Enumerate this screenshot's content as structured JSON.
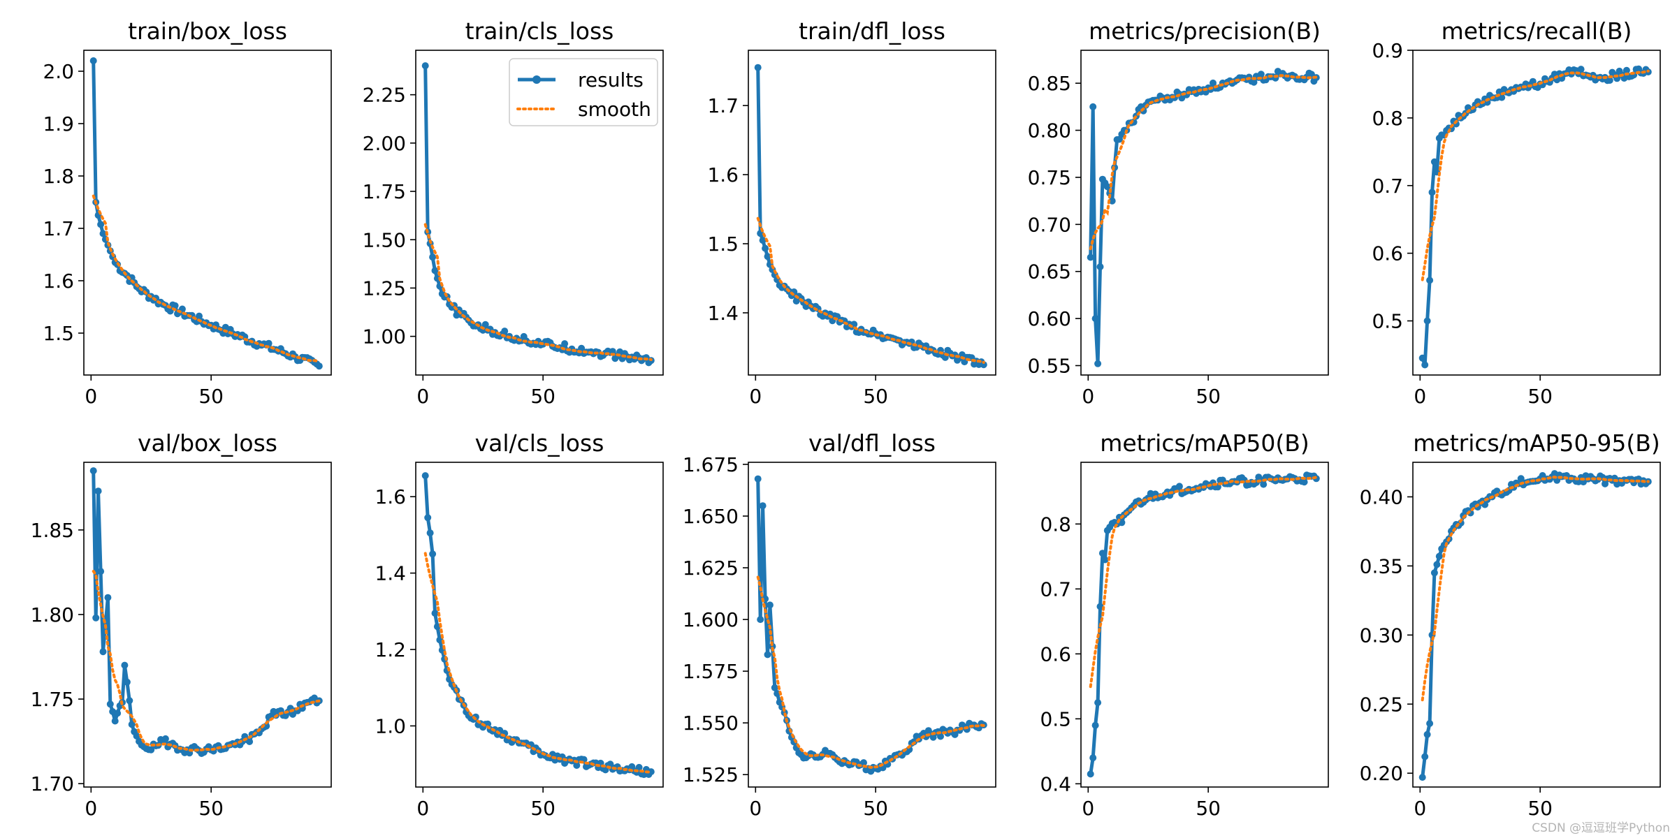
{
  "watermark": "CSDN @逗逗班学Python",
  "colors": {
    "results": "#1f77b4",
    "smooth": "#ff7f0e"
  },
  "legend": {
    "results": "results",
    "smooth": "smooth"
  },
  "chart_data": [
    {
      "type": "line",
      "title": "train/box_loss",
      "xlim": [
        -3,
        100
      ],
      "ylim": [
        1.42,
        2.04
      ],
      "xticks": [
        0,
        50
      ],
      "yticks": [
        1.5,
        1.6,
        1.7,
        1.8,
        1.9,
        2.0
      ],
      "ytick_labels": [
        "1.5",
        "1.6",
        "1.7",
        "1.8",
        "1.9",
        "2.0"
      ],
      "kp": [
        [
          1,
          2.02
        ],
        [
          2,
          1.75
        ],
        [
          3,
          1.725
        ],
        [
          5,
          1.69
        ],
        [
          10,
          1.635
        ],
        [
          20,
          1.585
        ],
        [
          30,
          1.555
        ],
        [
          50,
          1.515
        ],
        [
          70,
          1.48
        ],
        [
          85,
          1.455
        ],
        [
          95,
          1.437
        ]
      ],
      "legend": false
    },
    {
      "type": "line",
      "title": "train/cls_loss",
      "xlim": [
        -3,
        100
      ],
      "ylim": [
        0.8,
        2.48
      ],
      "xticks": [
        0,
        50
      ],
      "yticks": [
        1.0,
        1.25,
        1.5,
        1.75,
        2.0,
        2.25
      ],
      "ytick_labels": [
        "1.00",
        "1.25",
        "1.50",
        "1.75",
        "2.00",
        "2.25"
      ],
      "kp": [
        [
          1,
          2.4
        ],
        [
          2,
          1.54
        ],
        [
          3,
          1.48
        ],
        [
          5,
          1.34
        ],
        [
          8,
          1.22
        ],
        [
          12,
          1.15
        ],
        [
          20,
          1.07
        ],
        [
          30,
          1.02
        ],
        [
          50,
          0.96
        ],
        [
          70,
          0.92
        ],
        [
          85,
          0.895
        ],
        [
          95,
          0.875
        ]
      ],
      "legend": true
    },
    {
      "type": "line",
      "title": "train/dfl_loss",
      "xlim": [
        -3,
        100
      ],
      "ylim": [
        1.31,
        1.78
      ],
      "xticks": [
        0,
        50
      ],
      "yticks": [
        1.4,
        1.5,
        1.6,
        1.7
      ],
      "ytick_labels": [
        "1.4",
        "1.5",
        "1.6",
        "1.7"
      ],
      "kp": [
        [
          1,
          1.755
        ],
        [
          2,
          1.515
        ],
        [
          3,
          1.505
        ],
        [
          6,
          1.47
        ],
        [
          10,
          1.44
        ],
        [
          20,
          1.415
        ],
        [
          30,
          1.395
        ],
        [
          40,
          1.38
        ],
        [
          50,
          1.37
        ],
        [
          70,
          1.35
        ],
        [
          85,
          1.335
        ],
        [
          95,
          1.325
        ]
      ],
      "legend": false
    },
    {
      "type": "line",
      "title": "metrics/precision(B)",
      "xlim": [
        -3,
        100
      ],
      "ylim": [
        0.54,
        0.885
      ],
      "xticks": [
        0,
        50
      ],
      "yticks": [
        0.55,
        0.6,
        0.65,
        0.7,
        0.75,
        0.8,
        0.85
      ],
      "ytick_labels": [
        "0.55",
        "0.60",
        "0.65",
        "0.70",
        "0.75",
        "0.80",
        "0.85"
      ],
      "kp": [
        [
          1,
          0.665
        ],
        [
          2,
          0.825
        ],
        [
          3,
          0.6
        ],
        [
          4,
          0.552
        ],
        [
          5,
          0.655
        ],
        [
          6,
          0.748
        ],
        [
          8,
          0.74
        ],
        [
          10,
          0.725
        ],
        [
          12,
          0.79
        ],
        [
          15,
          0.8
        ],
        [
          20,
          0.815
        ],
        [
          25,
          0.83
        ],
        [
          35,
          0.835
        ],
        [
          50,
          0.845
        ],
        [
          60,
          0.85
        ],
        [
          80,
          0.86
        ],
        [
          95,
          0.856
        ]
      ],
      "legend": false
    },
    {
      "type": "line",
      "title": "metrics/recall(B)",
      "xlim": [
        -3,
        100
      ],
      "ylim": [
        0.42,
        0.9
      ],
      "xticks": [
        0,
        50
      ],
      "yticks": [
        0.5,
        0.6,
        0.7,
        0.8,
        0.9
      ],
      "ytick_labels": [
        "0.5",
        "0.6",
        "0.7",
        "0.8",
        "0.9"
      ],
      "kp": [
        [
          1,
          0.445
        ],
        [
          2,
          0.435
        ],
        [
          3,
          0.5
        ],
        [
          4,
          0.56
        ],
        [
          5,
          0.69
        ],
        [
          6,
          0.735
        ],
        [
          7,
          0.72
        ],
        [
          8,
          0.77
        ],
        [
          12,
          0.785
        ],
        [
          20,
          0.815
        ],
        [
          30,
          0.83
        ],
        [
          40,
          0.845
        ],
        [
          50,
          0.85
        ],
        [
          60,
          0.865
        ],
        [
          65,
          0.87
        ],
        [
          75,
          0.86
        ],
        [
          95,
          0.868
        ]
      ],
      "legend": false
    },
    {
      "type": "line",
      "title": "val/box_loss",
      "xlim": [
        -3,
        100
      ],
      "ylim": [
        1.698,
        1.89
      ],
      "xticks": [
        0,
        50
      ],
      "yticks": [
        1.7,
        1.75,
        1.8,
        1.85
      ],
      "ytick_labels": [
        "1.70",
        "1.75",
        "1.80",
        "1.85"
      ],
      "kp": [
        [
          1,
          1.885
        ],
        [
          2,
          1.798
        ],
        [
          3,
          1.873
        ],
        [
          5,
          1.778
        ],
        [
          7,
          1.81
        ],
        [
          8,
          1.747
        ],
        [
          10,
          1.737
        ],
        [
          13,
          1.748
        ],
        [
          14,
          1.77
        ],
        [
          15,
          1.76
        ],
        [
          17,
          1.735
        ],
        [
          20,
          1.725
        ],
        [
          25,
          1.72
        ],
        [
          30,
          1.725
        ],
        [
          40,
          1.72
        ],
        [
          50,
          1.72
        ],
        [
          60,
          1.723
        ],
        [
          70,
          1.73
        ],
        [
          75,
          1.74
        ],
        [
          85,
          1.743
        ],
        [
          90,
          1.748
        ],
        [
          95,
          1.749
        ]
      ],
      "legend": false
    },
    {
      "type": "line",
      "title": "val/cls_loss",
      "xlim": [
        -3,
        100
      ],
      "ylim": [
        0.84,
        1.69
      ],
      "xticks": [
        0,
        50
      ],
      "yticks": [
        1.0,
        1.2,
        1.4,
        1.6
      ],
      "ytick_labels": [
        "1.0",
        "1.2",
        "1.4",
        "1.6"
      ],
      "kp": [
        [
          1,
          1.655
        ],
        [
          2,
          1.545
        ],
        [
          3,
          1.505
        ],
        [
          4,
          1.45
        ],
        [
          5,
          1.295
        ],
        [
          7,
          1.225
        ],
        [
          10,
          1.145
        ],
        [
          15,
          1.07
        ],
        [
          20,
          1.02
        ],
        [
          30,
          0.99
        ],
        [
          40,
          0.955
        ],
        [
          50,
          0.925
        ],
        [
          60,
          0.91
        ],
        [
          70,
          0.9
        ],
        [
          80,
          0.89
        ],
        [
          95,
          0.88
        ]
      ],
      "legend": false
    },
    {
      "type": "line",
      "title": "val/dfl_loss",
      "xlim": [
        -3,
        100
      ],
      "ylim": [
        1.519,
        1.676
      ],
      "xticks": [
        0,
        50
      ],
      "yticks": [
        1.525,
        1.55,
        1.575,
        1.6,
        1.625,
        1.65,
        1.675
      ],
      "ytick_labels": [
        "1.525",
        "1.550",
        "1.575",
        "1.600",
        "1.625",
        "1.650",
        "1.675"
      ],
      "kp": [
        [
          1,
          1.668
        ],
        [
          2,
          1.6
        ],
        [
          3,
          1.655
        ],
        [
          4,
          1.61
        ],
        [
          5,
          1.583
        ],
        [
          6,
          1.607
        ],
        [
          8,
          1.567
        ],
        [
          10,
          1.56
        ],
        [
          12,
          1.555
        ],
        [
          15,
          1.543
        ],
        [
          20,
          1.533
        ],
        [
          30,
          1.535
        ],
        [
          40,
          1.53
        ],
        [
          50,
          1.528
        ],
        [
          55,
          1.53
        ],
        [
          60,
          1.535
        ],
        [
          70,
          1.545
        ],
        [
          80,
          1.545
        ],
        [
          90,
          1.549
        ],
        [
          95,
          1.549
        ]
      ],
      "legend": false
    },
    {
      "type": "line",
      "title": "metrics/mAP50(B)",
      "xlim": [
        -3,
        100
      ],
      "ylim": [
        0.395,
        0.895
      ],
      "xticks": [
        0,
        50
      ],
      "yticks": [
        0.4,
        0.5,
        0.6,
        0.7,
        0.8
      ],
      "ytick_labels": [
        "0.4",
        "0.5",
        "0.6",
        "0.7",
        "0.8"
      ],
      "kp": [
        [
          1,
          0.415
        ],
        [
          2,
          0.44
        ],
        [
          3,
          0.49
        ],
        [
          4,
          0.525
        ],
        [
          5,
          0.673
        ],
        [
          6,
          0.755
        ],
        [
          7,
          0.745
        ],
        [
          8,
          0.79
        ],
        [
          12,
          0.8
        ],
        [
          18,
          0.825
        ],
        [
          25,
          0.84
        ],
        [
          35,
          0.85
        ],
        [
          50,
          0.86
        ],
        [
          60,
          0.865
        ],
        [
          80,
          0.868
        ],
        [
          95,
          0.87
        ]
      ],
      "legend": false
    },
    {
      "type": "line",
      "title": "metrics/mAP50-95(B)",
      "xlim": [
        -3,
        100
      ],
      "ylim": [
        0.19,
        0.425
      ],
      "xticks": [
        0,
        50
      ],
      "yticks": [
        0.2,
        0.25,
        0.3,
        0.35,
        0.4
      ],
      "ytick_labels": [
        "0.20",
        "0.25",
        "0.30",
        "0.35",
        "0.40"
      ],
      "kp": [
        [
          1,
          0.197
        ],
        [
          2,
          0.212
        ],
        [
          3,
          0.228
        ],
        [
          4,
          0.236
        ],
        [
          5,
          0.3
        ],
        [
          6,
          0.345
        ],
        [
          8,
          0.357
        ],
        [
          10,
          0.365
        ],
        [
          15,
          0.38
        ],
        [
          20,
          0.39
        ],
        [
          30,
          0.4
        ],
        [
          40,
          0.41
        ],
        [
          50,
          0.413
        ],
        [
          60,
          0.415
        ],
        [
          70,
          0.413
        ],
        [
          80,
          0.412
        ],
        [
          95,
          0.411
        ]
      ],
      "legend": false
    }
  ]
}
